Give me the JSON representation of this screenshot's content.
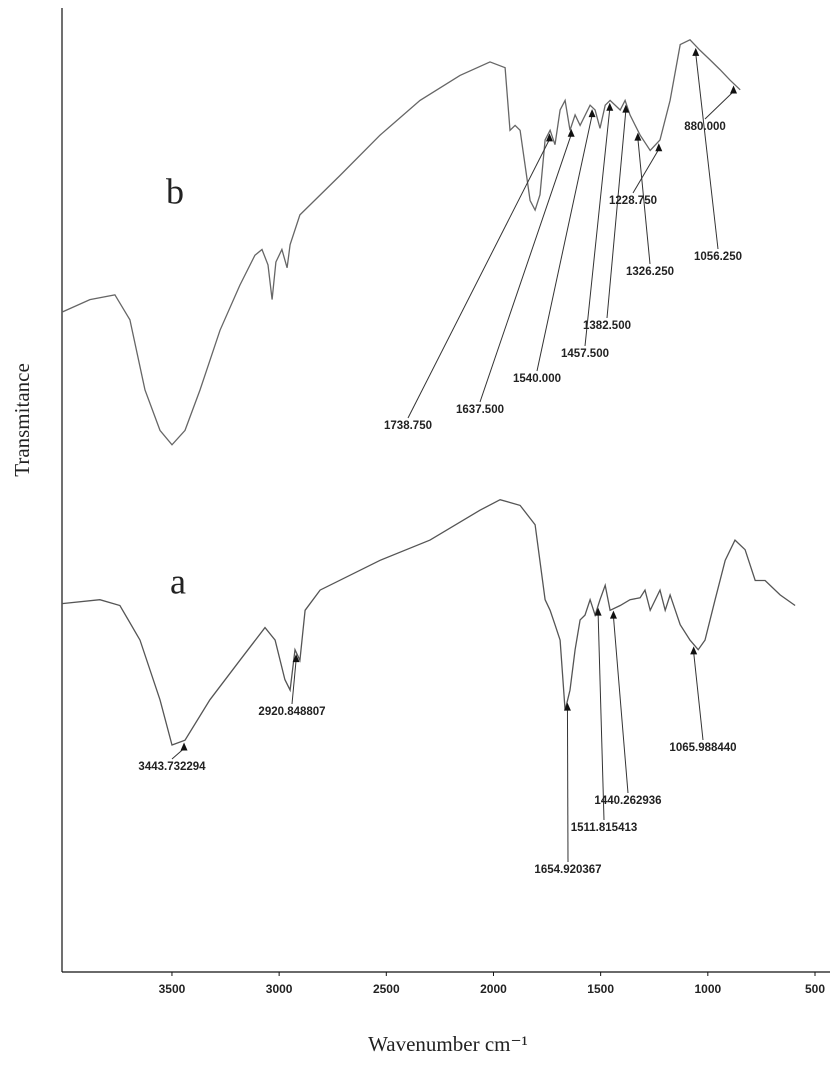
{
  "chart_data": {
    "type": "line",
    "y_label": "Transmitance",
    "x_label": "Wavenumber cm⁻¹",
    "xlim": [
      4013,
      430
    ],
    "ylim": [
      0,
      100
    ],
    "xticks": [
      3500,
      3000,
      2500,
      2000,
      1500,
      1000,
      500
    ],
    "series": [
      {
        "name": "b",
        "color": "#666666",
        "x": [
          4013,
          3883,
          3766,
          3696,
          3626,
          3556,
          3500,
          3439,
          3369,
          3276,
          3183,
          3113,
          3080,
          3052,
          3033,
          3015,
          2987,
          2963,
          2949,
          2903,
          2716,
          2529,
          2343,
          2156,
          2016,
          1946,
          1923,
          1899,
          1876,
          1829,
          1806,
          1783,
          1759,
          1736,
          1713,
          1689,
          1666,
          1643,
          1619,
          1596,
          1549,
          1526,
          1503,
          1479,
          1456,
          1409,
          1386,
          1363,
          1316,
          1269,
          1223,
          1176,
          1129,
          1083,
          1036,
          989,
          943,
          896,
          849
        ],
        "values": [
          68.6,
          69.9,
          70.4,
          67.8,
          60.5,
          56.3,
          54.8,
          56.3,
          60.5,
          66.7,
          71.4,
          74.5,
          75.1,
          73.5,
          69.9,
          73.8,
          75.1,
          73.2,
          75.6,
          78.7,
          82.8,
          87.0,
          90.6,
          93.2,
          94.6,
          94.0,
          87.5,
          88.0,
          87.5,
          80.2,
          79.2,
          80.8,
          86.5,
          87.5,
          86.0,
          89.6,
          90.6,
          87.5,
          89.1,
          88.0,
          90.1,
          89.6,
          87.7,
          90.1,
          90.6,
          89.6,
          90.6,
          89.1,
          87.0,
          85.4,
          86.5,
          90.6,
          96.4,
          96.9,
          95.8,
          94.8,
          93.8,
          92.7,
          91.7
        ],
        "peaks": [
          {
            "value": 1738.75,
            "label": "1738.750"
          },
          {
            "value": 1637.5,
            "label": "1637.500"
          },
          {
            "value": 1540,
            "label": "1540.000"
          },
          {
            "value": 1457.5,
            "label": "1457.500"
          },
          {
            "value": 1382.5,
            "label": "1382.500"
          },
          {
            "value": 1326.25,
            "label": "1326.250"
          },
          {
            "value": 1228.75,
            "label": "1228.750"
          },
          {
            "value": 1056.25,
            "label": "1056.250"
          },
          {
            "value": 880,
            "label": "880.000"
          }
        ]
      },
      {
        "name": "a",
        "color": "#555555",
        "x": [
          4013,
          3836,
          3743,
          3649,
          3556,
          3500,
          3439,
          3323,
          3183,
          3066,
          3019,
          2973,
          2949,
          2926,
          2903,
          2879,
          2809,
          2529,
          2296,
          2063,
          1969,
          1876,
          1806,
          1759,
          1736,
          1713,
          1689,
          1666,
          1643,
          1619,
          1596,
          1573,
          1549,
          1526,
          1503,
          1479,
          1456,
          1409,
          1363,
          1316,
          1293,
          1269,
          1223,
          1199,
          1176,
          1129,
          1083,
          1045,
          1013,
          966,
          919,
          873,
          826,
          779,
          733,
          663,
          593
        ],
        "values": [
          38.3,
          38.7,
          38.1,
          34.5,
          28.3,
          23.6,
          24.1,
          28.3,
          32.4,
          35.8,
          34.5,
          30.4,
          29.3,
          33.5,
          32.4,
          37.6,
          39.7,
          42.8,
          44.9,
          48.0,
          49.1,
          48.5,
          46.5,
          38.7,
          37.6,
          36.1,
          34.5,
          27.2,
          29.3,
          33.5,
          36.6,
          37.1,
          38.7,
          37.1,
          38.7,
          40.2,
          37.6,
          38.1,
          38.7,
          38.9,
          39.7,
          37.6,
          39.7,
          37.6,
          39.2,
          36.1,
          34.5,
          33.5,
          34.5,
          38.7,
          42.8,
          44.9,
          43.9,
          40.7,
          40.7,
          39.2,
          38.1
        ],
        "peaks": [
          3443.732294,
          2920.848807,
          1654.920367,
          1511.815413,
          1440.262936,
          {
            "value": 1065.98844,
            "label": "1065.988440"
          }
        ]
      }
    ]
  }
}
